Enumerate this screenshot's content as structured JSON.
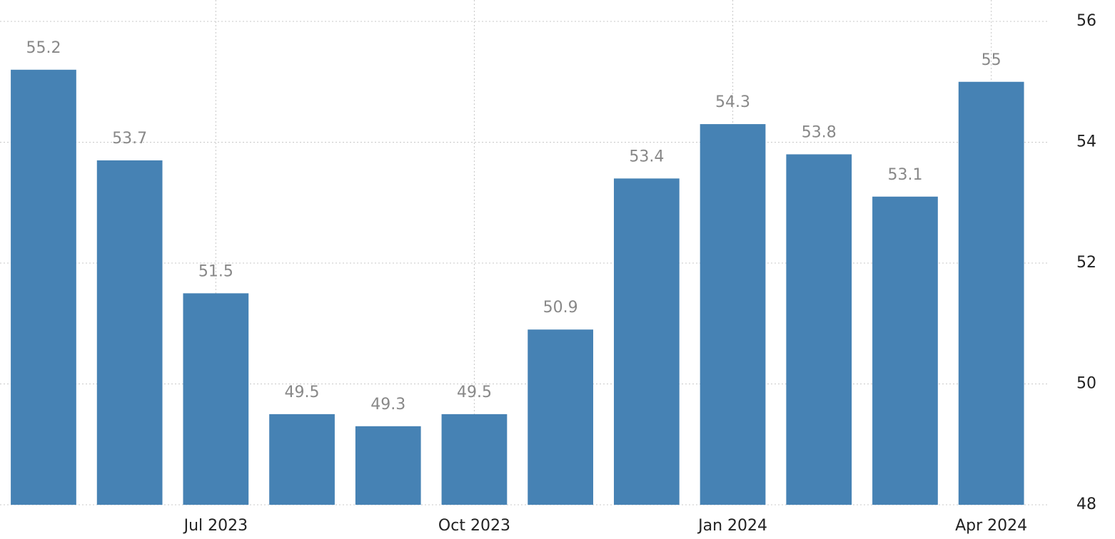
{
  "chart_data": {
    "type": "bar",
    "categories": [
      null,
      null,
      "Jul 2023",
      null,
      null,
      "Oct 2023",
      null,
      null,
      "Jan 2024",
      null,
      null,
      "Apr 2024"
    ],
    "values": [
      55.2,
      53.7,
      51.5,
      49.5,
      49.3,
      49.5,
      50.9,
      53.4,
      54.3,
      53.8,
      53.1,
      55
    ],
    "color": "#4682b4",
    "ylim": [
      48,
      56
    ],
    "yticks": [
      48,
      50,
      52,
      54,
      56
    ],
    "grid": true
  }
}
